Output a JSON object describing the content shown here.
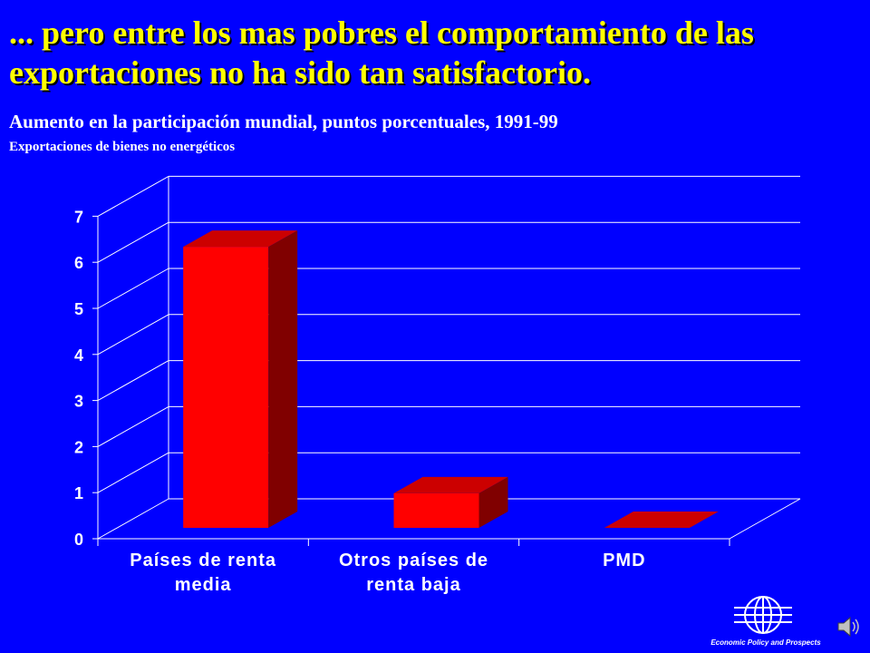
{
  "title": "... pero entre los mas pobres el comportamiento de las exportaciones no ha sido tan satisfactorio.",
  "subtitle": "Aumento en la participación mundial, puntos porcentuales, 1991-99",
  "subtitle2": "Exportaciones de bienes no energéticos",
  "logo": {
    "caption": "Economic Policy and Prospects",
    "icon": "globe-icon"
  },
  "speaker_icon": "speaker-icon",
  "colors": {
    "background": "#0000ff",
    "title": "#ffff00",
    "bar_front": "#ff0000",
    "bar_top": "#cc0000",
    "bar_side": "#800000",
    "grid": "#ffffff"
  },
  "chart_data": {
    "type": "bar",
    "style": "3d",
    "categories": [
      [
        "Países de renta",
        "media"
      ],
      [
        "Otros países de",
        "renta baja"
      ],
      [
        "PMD"
      ]
    ],
    "values": [
      6.1,
      0.75,
      0.0
    ],
    "ylim": [
      0,
      7
    ],
    "yticks": [
      "0",
      "1",
      "2",
      "3",
      "4",
      "5",
      "6",
      "7"
    ],
    "grid": true
  }
}
